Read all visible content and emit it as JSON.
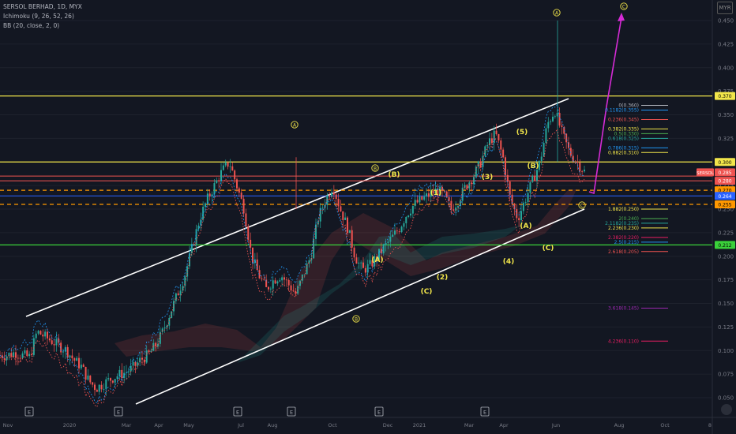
{
  "legend": {
    "symbol_line": "SERSOL BERHAD, 1D, MYX",
    "ichimoku": "Ichimoku (9, 26, 52, 26)",
    "bb": "BB (20, close, 2, 0)"
  },
  "settings_label": "MYR",
  "colors": {
    "background": "#131722",
    "up": "#26a69a",
    "down": "#ef5350",
    "channel": "#ffffff",
    "hline_yellow": "#f2e64a",
    "hline_green": "#3ad13a",
    "hline_red": "#ef5350",
    "dashed_orange": "#ff9800",
    "projection": "#d62bd6"
  },
  "chart_data": {
    "type": "candlestick",
    "symbol": "SERSOL BERHAD",
    "timeframe": "1D",
    "exchange": "MYX",
    "y_axis": {
      "min": 0.05,
      "max": 0.45,
      "ticks": [
        "0.450",
        "0.425",
        "0.400",
        "0.375",
        "0.350",
        "0.325",
        "0.300",
        "0.275",
        "0.250",
        "0.225",
        "0.200",
        "0.175",
        "0.150",
        "0.125",
        "0.100",
        "0.075",
        "0.050"
      ]
    },
    "x_axis": {
      "ticks": [
        "Nov",
        "2020",
        "Mar",
        "Apr",
        "May",
        "Jul",
        "Aug",
        "Oct",
        "Dec",
        "2021",
        "Mar",
        "Apr",
        "Jun",
        "Aug",
        "Oct",
        "8"
      ]
    },
    "price_path": [
      0.095,
      0.095,
      0.098,
      0.095,
      0.093,
      0.12,
      0.115,
      0.11,
      0.105,
      0.1,
      0.09,
      0.083,
      0.068,
      0.06,
      0.065,
      0.07,
      0.074,
      0.077,
      0.082,
      0.09,
      0.095,
      0.105,
      0.12,
      0.14,
      0.16,
      0.18,
      0.21,
      0.24,
      0.26,
      0.275,
      0.29,
      0.3,
      0.275,
      0.25,
      0.2,
      0.18,
      0.165,
      0.175,
      0.18,
      0.17,
      0.16,
      0.18,
      0.2,
      0.24,
      0.26,
      0.275,
      0.25,
      0.23,
      0.2,
      0.185,
      0.19,
      0.2,
      0.21,
      0.22,
      0.23,
      0.245,
      0.255,
      0.26,
      0.265,
      0.27,
      0.265,
      0.25,
      0.26,
      0.275,
      0.285,
      0.3,
      0.32,
      0.33,
      0.305,
      0.26,
      0.24,
      0.26,
      0.28,
      0.3,
      0.34,
      0.355,
      0.33,
      0.31,
      0.3,
      0.29
    ],
    "last_price": "0.285",
    "horizontal_levels": [
      {
        "label": "0.370",
        "price": 0.37,
        "style": "yellow"
      },
      {
        "label": "0.300",
        "price": 0.3,
        "style": "yellow"
      },
      {
        "label": "0.285",
        "price": 0.285,
        "style": "red"
      },
      {
        "label": "0.280",
        "price": 0.28,
        "style": "red"
      },
      {
        "label": "0.270",
        "price": 0.27,
        "style": "orange-dashed"
      },
      {
        "label": "0.264",
        "price": 0.264,
        "style": "blue"
      },
      {
        "label": "0.255",
        "price": 0.255,
        "style": "orange-dashed"
      },
      {
        "label": "0.212",
        "price": 0.212,
        "style": "green"
      }
    ],
    "price_tags": [
      {
        "text": "0.370",
        "price": 0.37,
        "bg": "#f2e64a",
        "fg": "#000000"
      },
      {
        "text": "0.300",
        "price": 0.3,
        "bg": "#f2e64a",
        "fg": "#000000"
      },
      {
        "text": "SERSOL",
        "price": 0.289,
        "bg": "#ef5350",
        "fg": "#ffffff"
      },
      {
        "text": "0.285",
        "price": 0.289,
        "bg": "#ef5350",
        "fg": "#ffffff"
      },
      {
        "text": "0.280",
        "price": 0.28,
        "bg": "#ef5350",
        "fg": "#ffffff"
      },
      {
        "text": "0.270",
        "price": 0.27,
        "bg": "#ff9800",
        "fg": "#000000"
      },
      {
        "text": "0.264",
        "price": 0.264,
        "bg": "#2962ff",
        "fg": "#ffffff"
      },
      {
        "text": "0.255",
        "price": 0.255,
        "bg": "#ff9800",
        "fg": "#000000"
      },
      {
        "text": "0.212",
        "price": 0.212,
        "bg": "#3ad13a",
        "fg": "#000000"
      }
    ],
    "fib_levels": [
      {
        "text": "0(0.360)",
        "price": 0.36,
        "color": "#b2b5be"
      },
      {
        "text": "0.1182(0.355)",
        "price": 0.355,
        "color": "#2196f3"
      },
      {
        "text": "0.236(0.345)",
        "price": 0.345,
        "color": "#ef5350"
      },
      {
        "text": "0.382(0.335)",
        "price": 0.335,
        "color": "#f2e64a"
      },
      {
        "text": "0.5(0.330)",
        "price": 0.33,
        "color": "#4caf50"
      },
      {
        "text": "0.618(0.325)",
        "price": 0.325,
        "color": "#26a69a"
      },
      {
        "text": "0.786(0.315)",
        "price": 0.315,
        "color": "#2196f3"
      },
      {
        "text": "0.882(0.310)",
        "price": 0.31,
        "color": "#f2e64a"
      },
      {
        "text": "1.882(0.250)",
        "price": 0.25,
        "color": "#f2e64a"
      },
      {
        "text": "2(0.240)",
        "price": 0.24,
        "color": "#4caf50"
      },
      {
        "text": "2.1182(0.235)",
        "price": 0.235,
        "color": "#26a69a"
      },
      {
        "text": "2.236(0.230)",
        "price": 0.23,
        "color": "#f2e64a"
      },
      {
        "text": "2.382(0.220)",
        "price": 0.22,
        "color": "#e91e63"
      },
      {
        "text": "2.5(0.215)",
        "price": 0.215,
        "color": "#2196f3"
      },
      {
        "text": "2.618(0.205)",
        "price": 0.205,
        "color": "#ef5350"
      },
      {
        "text": "3.618(0.145)",
        "price": 0.145,
        "color": "#9c27b0"
      },
      {
        "text": "4.236(0.110)",
        "price": 0.11,
        "color": "#e91e63"
      }
    ],
    "wave_labels": [
      {
        "text": "A",
        "circled": true,
        "color": "#f2e64a"
      },
      {
        "text": "C",
        "circled": true,
        "color": "#f2e64a"
      },
      {
        "text": "A",
        "circled": true,
        "color": "#f2e64a"
      },
      {
        "text": "C",
        "circled": true,
        "color": "#f2e64a"
      },
      {
        "text": "B",
        "circled": true,
        "color": "#f2e64a"
      },
      {
        "text": "B",
        "circled": true,
        "color": "#f2e64a"
      },
      {
        "text": "(B)",
        "circled": false,
        "color": "#f2e64a"
      },
      {
        "text": "(A)",
        "circled": false,
        "color": "#f2e64a"
      },
      {
        "text": "(1)",
        "circled": false,
        "color": "#f2e64a"
      },
      {
        "text": "(2)",
        "circled": false,
        "color": "#f2e64a"
      },
      {
        "text": "(C)",
        "circled": false,
        "color": "#f2e64a"
      },
      {
        "text": "(3)",
        "circled": false,
        "color": "#f2e64a"
      },
      {
        "text": "(4)",
        "circled": false,
        "color": "#f2e64a"
      },
      {
        "text": "(5)",
        "circled": false,
        "color": "#f2e64a"
      },
      {
        "text": "(B)",
        "circled": false,
        "color": "#f2e64a"
      },
      {
        "text": "(A)",
        "circled": false,
        "color": "#f2e64a"
      },
      {
        "text": "(C)",
        "circled": false,
        "color": "#f2e64a"
      }
    ],
    "earnings_markers": [
      "E",
      "E",
      "E",
      "E",
      "E",
      "E"
    ]
  }
}
